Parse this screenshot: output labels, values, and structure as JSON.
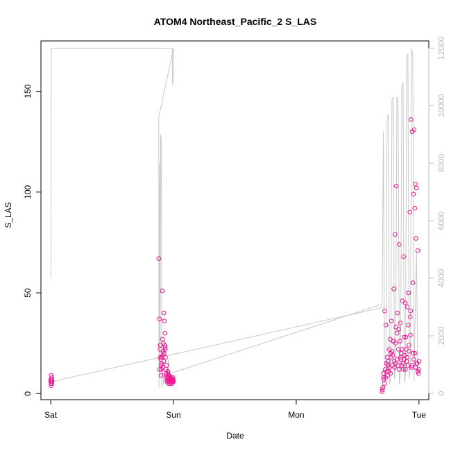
{
  "chart_data": {
    "type": "scatter",
    "title": "ATOM4 Northeast_Pacific_2 S_LAS",
    "xlabel": "Date",
    "ylabel": "S_LAS",
    "x_ticks": [
      "Sat",
      "Sun",
      "Mon",
      "Tue"
    ],
    "y_left_ticks": [
      "0",
      "50",
      "100",
      "150"
    ],
    "y_left_range": [
      -3,
      175
    ],
    "y_right_ticks": [
      "0",
      "2000",
      "4000",
      "6000",
      "8000",
      "10000",
      "12000"
    ],
    "y_right_range": [
      -220,
      12250
    ],
    "x_range_days": [
      -0.08,
      3.08
    ],
    "grid": false,
    "colors": {
      "points": "#ff1493",
      "points_alt": "#e0118c",
      "line": "#c8c8c8",
      "axis": "#000000",
      "right_axis": "#bdbdbd"
    },
    "series": [
      {
        "name": "",
        "axis": "right",
        "kind": "line",
        "x": [
          0.0,
          0.005,
          0.01,
          0.99,
          0.992,
          0.995,
          0.997,
          1.0,
          0.88,
          0.882,
          0.885,
          0.888,
          0.89,
          0.895,
          0.9,
          0.905,
          0.91,
          0.915,
          0.92,
          0.925,
          0.93,
          0.94,
          0.95,
          0.96,
          0.97,
          0.98,
          2.7,
          2.71,
          2.72,
          2.73,
          2.74,
          2.75,
          2.76,
          2.77,
          2.78,
          2.79,
          2.8,
          2.81,
          2.82,
          2.83,
          2.84,
          2.85,
          2.86,
          2.87,
          2.88,
          2.89,
          2.9,
          2.91,
          2.92,
          2.93,
          2.94,
          2.95,
          2.96,
          2.97,
          2.98,
          2.99,
          3.0
        ],
        "y": [
          4000,
          12000,
          12000,
          12000,
          10800,
          10700,
          11200,
          12000,
          9600,
          200,
          4000,
          8000,
          500,
          9000,
          8800,
          200,
          900,
          700,
          300,
          500,
          400,
          300,
          600,
          1200,
          300,
          700,
          3100,
          9100,
          400,
          800,
          9500,
          9700,
          300,
          600,
          10200,
          10300,
          500,
          900,
          10300,
          10200,
          300,
          700,
          10700,
          10800,
          400,
          600,
          11700,
          11800,
          500,
          900,
          12000,
          11700,
          400,
          3000,
          4900,
          600,
          900
        ]
      },
      {
        "name": "",
        "axis": "right",
        "kind": "line",
        "x": [
          0.0,
          2.72
        ],
        "y": [
          400,
          3000
        ]
      },
      {
        "name": "",
        "axis": "left",
        "kind": "scatter",
        "x": [
          0.0,
          0.003,
          0.006,
          0.008,
          0.01,
          0.004,
          0.007,
          0.002,
          0.009,
          0.005,
          0.001,
          0.011,
          0.88,
          0.885,
          0.89,
          0.892,
          0.895,
          0.898,
          0.9,
          0.902,
          0.905,
          0.908,
          0.91,
          0.912,
          0.915,
          0.918,
          0.92,
          0.922,
          0.925,
          0.928,
          0.93,
          0.932,
          0.935,
          0.938,
          0.94,
          0.942,
          0.945,
          0.948,
          0.95,
          0.952,
          0.955,
          0.958,
          0.96,
          0.962,
          0.965,
          0.968,
          0.97,
          0.972,
          0.975,
          0.978,
          0.98,
          0.982,
          0.985,
          0.988,
          0.99,
          0.992,
          0.995,
          0.998,
          1.0,
          0.886,
          0.894,
          0.903,
          0.913,
          0.923,
          0.933,
          0.943,
          0.953,
          0.963,
          0.973,
          0.983,
          0.993,
          2.7,
          2.71,
          2.72,
          2.73,
          2.74,
          2.75,
          2.76,
          2.77,
          2.78,
          2.79,
          2.8,
          2.81,
          2.82,
          2.83,
          2.84,
          2.85,
          2.86,
          2.87,
          2.88,
          2.89,
          2.9,
          2.91,
          2.92,
          2.93,
          2.94,
          2.95,
          2.96,
          2.97,
          2.98,
          2.99,
          3.0,
          2.705,
          2.715,
          2.725,
          2.735,
          2.745,
          2.755,
          2.765,
          2.775,
          2.785,
          2.795,
          2.805,
          2.815,
          2.825,
          2.835,
          2.845,
          2.855,
          2.865,
          2.875,
          2.885,
          2.895,
          2.905,
          2.915,
          2.925,
          2.935,
          2.945,
          2.955,
          2.965,
          2.975,
          2.985,
          2.995,
          2.702,
          2.718,
          2.728,
          2.742,
          2.758,
          2.768,
          2.782,
          2.798,
          2.808,
          2.822,
          2.838,
          2.848,
          2.862,
          2.878,
          2.888,
          2.902,
          2.918,
          2.928,
          2.942,
          2.958,
          2.968,
          2.982,
          2.998,
          2.712,
          2.748,
          2.772,
          2.792,
          2.812,
          2.832,
          2.852,
          2.872,
          2.892,
          2.912,
          2.932,
          2.952,
          2.972,
          2.992
        ],
        "y": [
          6,
          9,
          7,
          5,
          8,
          6,
          7,
          4,
          6,
          5,
          7,
          6,
          67,
          37,
          22,
          24,
          17,
          9,
          14,
          12,
          18,
          51,
          27,
          19,
          21,
          25,
          16,
          40,
          36,
          24,
          30,
          22,
          18,
          10,
          12,
          8,
          9,
          6,
          7,
          8,
          10,
          6,
          5,
          7,
          9,
          6,
          8,
          7,
          5,
          6,
          7,
          8,
          6,
          5,
          7,
          6,
          8,
          7,
          6,
          12,
          18,
          15,
          13,
          20,
          23,
          14,
          11,
          9,
          8,
          7,
          6,
          1,
          10,
          41,
          34,
          11,
          16,
          13,
          20,
          21,
          26,
          13,
          15,
          17,
          14,
          12,
          18,
          14,
          15,
          17,
          12,
          16,
          14,
          21,
          29,
          13,
          55,
          131,
          104,
          102,
          71,
          16,
          3,
          7,
          12,
          15,
          9,
          11,
          27,
          36,
          19,
          52,
          79,
          103,
          40,
          32,
          26,
          20,
          46,
          68,
          19,
          22,
          43,
          50,
          90,
          136,
          130,
          99,
          92,
          77,
          15,
          10,
          2,
          5,
          8,
          18,
          22,
          10,
          14,
          16,
          25,
          30,
          74,
          35,
          22,
          28,
          45,
          18,
          24,
          38,
          14,
          17,
          20,
          15,
          12,
          8,
          14,
          18,
          26,
          33,
          22,
          17,
          12,
          28,
          34,
          41,
          20,
          13,
          11
        ]
      }
    ]
  }
}
